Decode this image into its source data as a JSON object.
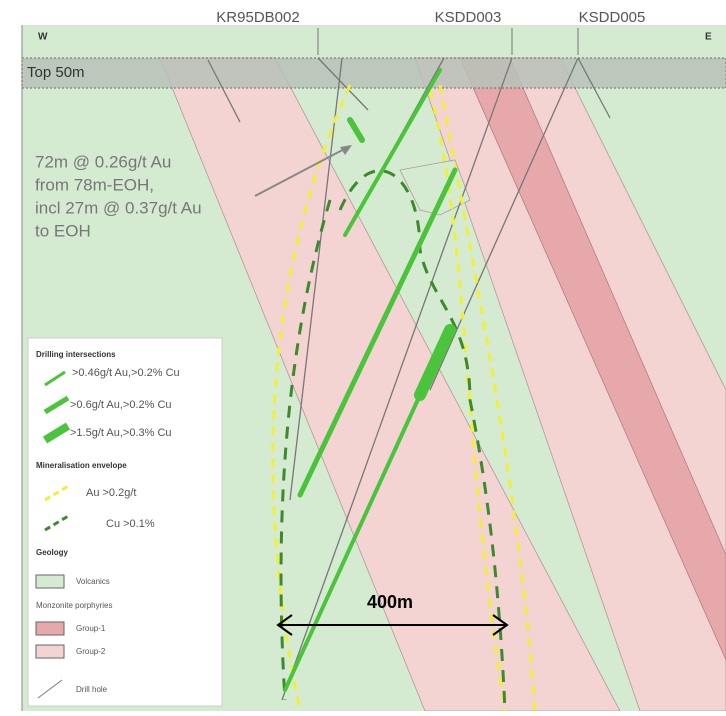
{
  "header": {
    "holes": [
      "KR95DB002",
      "KSDD003",
      "KSDD005"
    ],
    "west": "W",
    "east": "E",
    "band": "Top 50m"
  },
  "annotation": {
    "lines": [
      "72m @ 0.26g/t Au",
      "from 78m-EOH,",
      "incl 27m @ 0.37g/t Au",
      "to EOH"
    ]
  },
  "scale": "400m",
  "legend": {
    "drilling_title": "Drilling intersections",
    "drilling": [
      ">0.46g/t Au,>0.2% Cu",
      ">0.6g/t Au,>0.2% Cu",
      ">1.5g/t Au,>0.3% Cu"
    ],
    "envelope_title": "Mineralisation envelope",
    "envelope": [
      "Au >0.2g/t",
      "Cu >0.1%"
    ],
    "geology_title": "Geology",
    "volcanics": "Volcanics",
    "porphyry_title": "Monzonite porphyries",
    "groups": [
      "Group-1",
      "Group-2"
    ],
    "drill_hole": "Drill hole"
  }
}
